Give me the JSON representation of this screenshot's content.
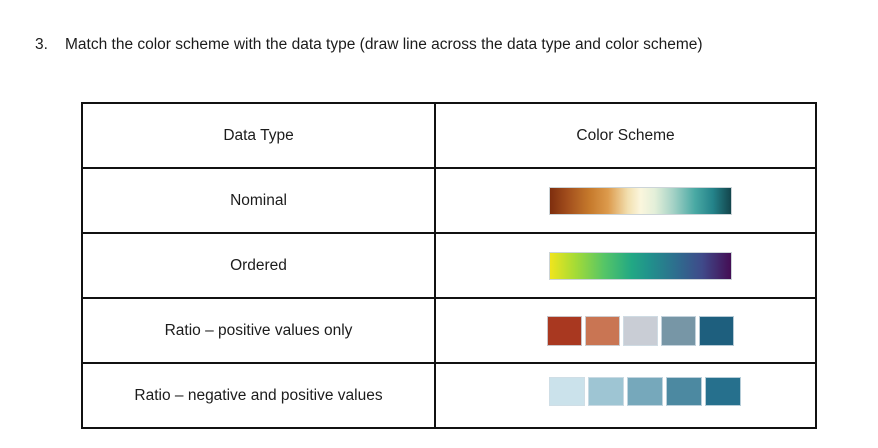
{
  "question": {
    "number": "3.",
    "text": "Match the color scheme with the data type (draw line across the data type and color scheme)"
  },
  "table": {
    "headers": [
      "Data Type",
      "Color Scheme"
    ],
    "rows": [
      {
        "label": "Nominal",
        "scheme": {
          "type": "gradient",
          "stops": [
            "#7E2E0E 0%",
            "#A34F1D 10%",
            "#C67A2C 22%",
            "#DC9A4C 32%",
            "#F2DFAF 43%",
            "#FBF6DD 50%",
            "#E3EFD9 58%",
            "#A5D2C6 68%",
            "#4AA9A4 80%",
            "#24838A 90%",
            "#13454C 100%"
          ]
        }
      },
      {
        "label": "Ordered",
        "scheme": {
          "type": "gradient",
          "stops": [
            "#F0E51D 0%",
            "#A5DB36 14%",
            "#55C567 30%",
            "#22A884 45%",
            "#21918C 55%",
            "#2E6D8E 70%",
            "#3F4A8A 84%",
            "#440D54 100%"
          ]
        }
      },
      {
        "label": "Ratio – positive values only",
        "scheme": {
          "type": "swatches",
          "colors": [
            "#A93820",
            "#C97553",
            "#C9CDD5",
            "#7796A6",
            "#1E5F7E"
          ]
        }
      },
      {
        "label": "Ratio – negative and positive values",
        "scheme": {
          "type": "swatches",
          "colors": [
            "#CBE2EB",
            "#9EC5D3",
            "#76A8BB",
            "#4C89A1",
            "#26708D"
          ]
        }
      }
    ]
  },
  "colors": {
    "table_border": "#111111",
    "text": "#1c1c1c",
    "background": "#ffffff"
  }
}
